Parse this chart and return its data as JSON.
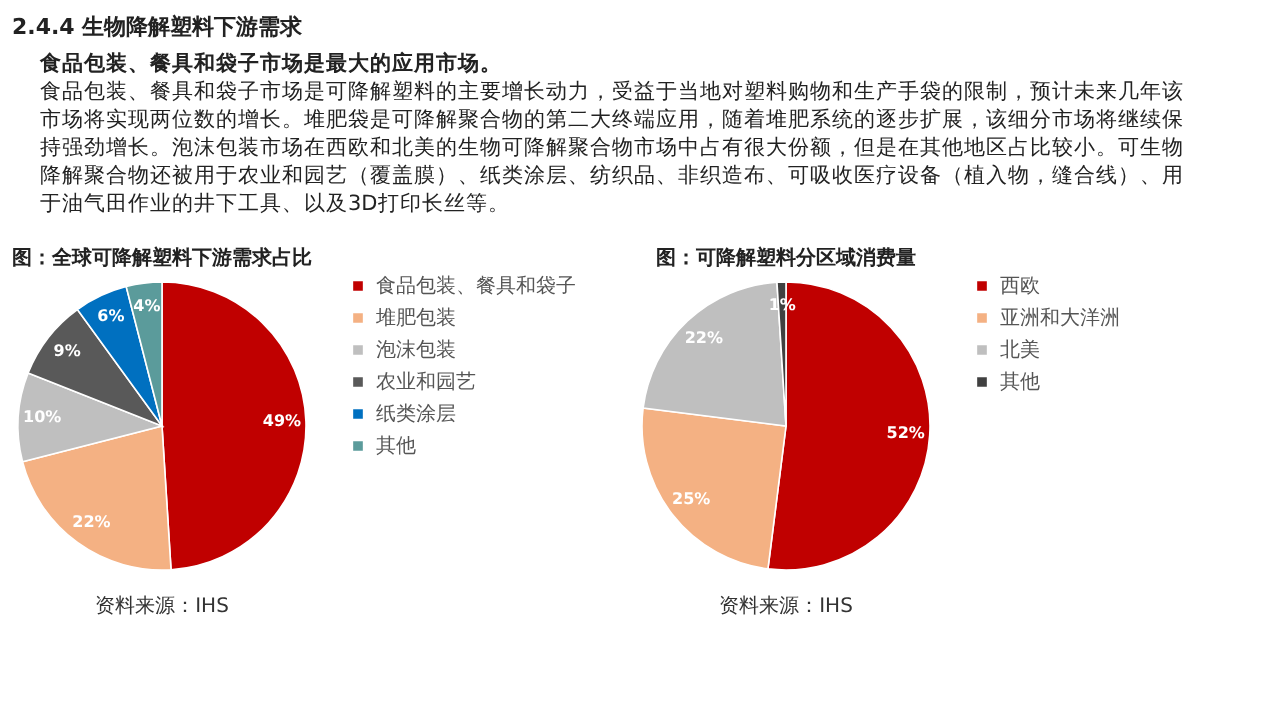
{
  "chart_data": [
    {
      "type": "other",
      "title": "2.4.4 生物降解塑料下游需求",
      "annotations": [
        "食品包装、餐具和袋子市场是最大的应用市场。",
        "食品包装、餐具和袋子市场是可降解塑料的主要增长动力，受益于当地对塑料购物和生产手袋的限制，预计未来几年该市场将实现两位数的增长。堆肥袋是可降解聚合物的第二大终端应用，随着堆肥系统的逐步扩展，该细分市场将继续保持强劲增长。泡沫包装市场在西欧和北美的生物可降解聚合物市场中占有很大份额，但是在其他地区占比较小。可生物降解聚合物还被用于农业和园艺（覆盖膜）、纸类涂层、纺织品、非织造布、可吸收医疗设备（植入物，缝合线）、用于油气田作业的井下工具、以及3D打印长丝等。"
      ]
    },
    {
      "type": "pie",
      "title": "图：全球可降解塑料下游需求占比",
      "categories": [
        "食品包装、餐具和袋子",
        "堆肥包装",
        "泡沫包装",
        "农业和园艺",
        "纸类涂层",
        "其他"
      ],
      "values": [
        49,
        22,
        10,
        9,
        6,
        4
      ],
      "value_labels": [
        "49%",
        "22%",
        "10%",
        "9%",
        "6%",
        "4%"
      ],
      "colors": [
        "#c00000",
        "#f4b183",
        "#bfbfbf",
        "#595959",
        "#0070c0",
        "#5b9b9b"
      ],
      "legend": "right",
      "annotations": [
        "资料来源：IHS"
      ]
    },
    {
      "type": "pie",
      "title": "图：可降解塑料分区域消费量",
      "categories": [
        "西欧",
        "亚洲和大洋洲",
        "北美",
        "其他"
      ],
      "values": [
        52,
        25,
        22,
        1
      ],
      "value_labels": [
        "52%",
        "25%",
        "22%",
        "1%"
      ],
      "colors": [
        "#c00000",
        "#f4b183",
        "#bfbfbf",
        "#404040"
      ],
      "legend": "right",
      "annotations": [
        "资料来源：IHS"
      ]
    }
  ]
}
